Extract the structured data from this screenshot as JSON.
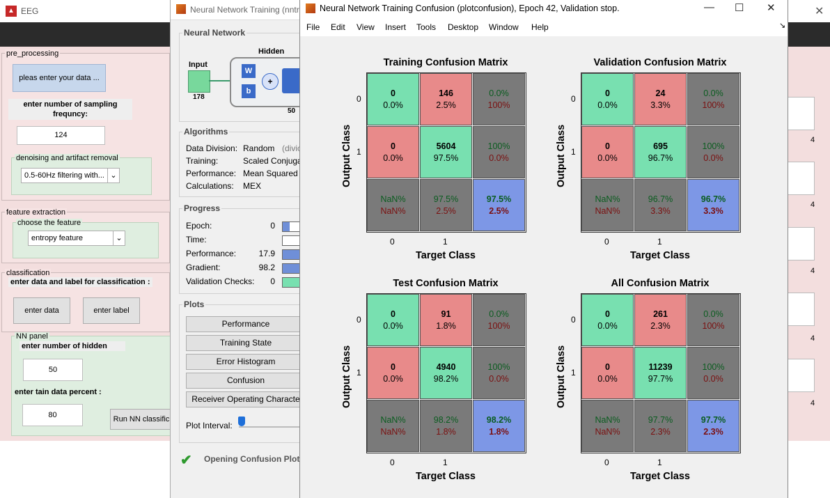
{
  "eeg": {
    "title": "EEG",
    "close": "✕",
    "pre_processing": {
      "label": "pre_processing",
      "enter_data_button": "pleas enter your data ...",
      "sampling_label": "enter number of sampling frequncy:",
      "sampling_value": "124",
      "denoise_label": "denoising and artifact removal",
      "denoise_value": "0.5-60Hz filtering with..."
    },
    "feature": {
      "label": "feature extraction",
      "choose_label": "choose the feature",
      "choose_value": "entropy feature"
    },
    "classification": {
      "label": "classification",
      "instruction": "enter data and label for classification :",
      "enter_data": "enter data",
      "enter_label": "enter label"
    },
    "nn_panel": {
      "label": "NN panel",
      "hidden_label": "enter number of hidden",
      "hidden_value": "50",
      "train_label": "enter tain data percent :",
      "train_value": "80",
      "run_button": "Run NN classific"
    },
    "right_numbers": [
      "4",
      "4",
      "4",
      "4",
      "4"
    ]
  },
  "nntraintool": {
    "title": "Neural Network Training (nntr",
    "network_section": "Neural Network",
    "diagram": {
      "input": "Input",
      "input_n": "178",
      "hidden": "Hidden",
      "hidden_n": "50",
      "w": "W",
      "b": "b",
      "plus": "+"
    },
    "algorithms_section": "Algorithms",
    "algorithms": [
      {
        "k": "Data Division:",
        "v": "Random",
        "extra": "(divic"
      },
      {
        "k": "Training:",
        "v": "Scaled Conjuga",
        "extra": ""
      },
      {
        "k": "Performance:",
        "v": "Mean Squared E",
        "extra": ""
      },
      {
        "k": "Calculations:",
        "v": "MEX",
        "extra": ""
      }
    ],
    "progress_section": "Progress",
    "progress": [
      {
        "k": "Epoch:",
        "v": "0",
        "fill": 0.25,
        "color": "#6f8fd8"
      },
      {
        "k": "Time:",
        "v": "",
        "fill": 0,
        "color": "#6f8fd8"
      },
      {
        "k": "Performance:",
        "v": "17.9",
        "fill": 1,
        "color": "#6f8fd8"
      },
      {
        "k": "Gradient:",
        "v": "98.2",
        "fill": 1,
        "color": "#6f8fd8"
      },
      {
        "k": "Validation Checks:",
        "v": "0",
        "fill": 1,
        "color": "#78e0b0"
      }
    ],
    "plots_section": "Plots",
    "plot_buttons": [
      "Performance",
      "Training State",
      "Error Histogram",
      "Confusion",
      "Receiver Operating Characte"
    ],
    "plot_interval": "Plot Interval:",
    "status": "Opening Confusion Plot"
  },
  "plotconfusion": {
    "title": "Neural Network Training Confusion (plotconfusion), Epoch 42, Validation stop.",
    "controls": {
      "min": "—",
      "max": "☐",
      "close": "✕"
    },
    "menu": [
      "File",
      "Edit",
      "View",
      "Insert",
      "Tools",
      "Desktop",
      "Window",
      "Help"
    ],
    "ylabel": "Output Class",
    "xlabel": "Target Class",
    "ticks": [
      "0",
      "1"
    ],
    "matrices": [
      {
        "title": "Training Confusion Matrix",
        "cells": [
          [
            "0",
            "0.0%"
          ],
          [
            "146",
            "2.5%"
          ],
          [
            "0.0%",
            "100%"
          ],
          [
            "0",
            "0.0%"
          ],
          [
            "5604",
            "97.5%"
          ],
          [
            "100%",
            "0.0%"
          ],
          [
            "NaN%",
            "NaN%"
          ],
          [
            "97.5%",
            "2.5%"
          ],
          [
            "97.5%",
            "2.5%"
          ]
        ]
      },
      {
        "title": "Validation Confusion Matrix",
        "cells": [
          [
            "0",
            "0.0%"
          ],
          [
            "24",
            "3.3%"
          ],
          [
            "0.0%",
            "100%"
          ],
          [
            "0",
            "0.0%"
          ],
          [
            "695",
            "96.7%"
          ],
          [
            "100%",
            "0.0%"
          ],
          [
            "NaN%",
            "NaN%"
          ],
          [
            "96.7%",
            "3.3%"
          ],
          [
            "96.7%",
            "3.3%"
          ]
        ]
      },
      {
        "title": "Test Confusion Matrix",
        "cells": [
          [
            "0",
            "0.0%"
          ],
          [
            "91",
            "1.8%"
          ],
          [
            "0.0%",
            "100%"
          ],
          [
            "0",
            "0.0%"
          ],
          [
            "4940",
            "98.2%"
          ],
          [
            "100%",
            "0.0%"
          ],
          [
            "NaN%",
            "NaN%"
          ],
          [
            "98.2%",
            "1.8%"
          ],
          [
            "98.2%",
            "1.8%"
          ]
        ]
      },
      {
        "title": "All Confusion Matrix",
        "cells": [
          [
            "0",
            "0.0%"
          ],
          [
            "261",
            "2.3%"
          ],
          [
            "0.0%",
            "100%"
          ],
          [
            "0",
            "0.0%"
          ],
          [
            "11239",
            "97.7%"
          ],
          [
            "100%",
            "0.0%"
          ],
          [
            "NaN%",
            "NaN%"
          ],
          [
            "97.7%",
            "2.3%"
          ],
          [
            "97.7%",
            "2.3%"
          ]
        ]
      }
    ]
  }
}
